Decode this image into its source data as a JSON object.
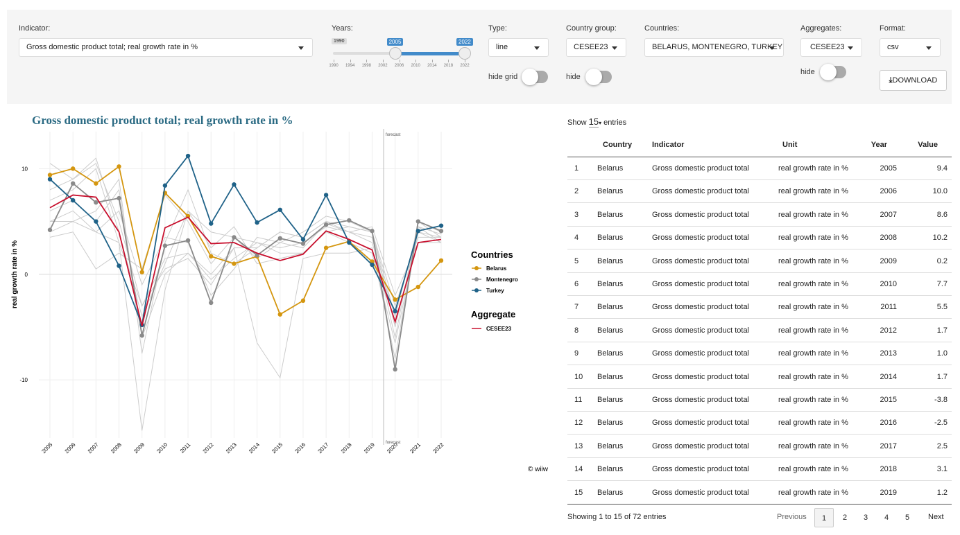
{
  "controls": {
    "indicator": {
      "label": "Indicator:",
      "value": "Gross domestic product total; real growth rate in %"
    },
    "years": {
      "label": "Years:",
      "min": 1990,
      "max": 2022,
      "from": 2005,
      "to": 2022,
      "ticks": [
        1990,
        1994,
        1998,
        2002,
        2006,
        2010,
        2014,
        2018,
        2022
      ]
    },
    "type": {
      "label": "Type:",
      "value": "line",
      "toggle_label": "hide grid"
    },
    "country_group": {
      "label": "Country group:",
      "value": "CESEE23",
      "toggle_label": "hide"
    },
    "countries": {
      "label": "Countries:",
      "value": "BELARUS, MONTENEGRO, TURKEY"
    },
    "aggregates": {
      "label": "Aggregates:",
      "value": "CESEE23",
      "toggle_label": "hide"
    },
    "format": {
      "label": "Format:",
      "value": "csv"
    },
    "download": "DOWNLOAD"
  },
  "chart_data": {
    "type": "line",
    "title": "Gross domestic product total; real growth rate in %",
    "y_label": "real growth rate in %",
    "x": [
      2005,
      2006,
      2007,
      2008,
      2009,
      2010,
      2011,
      2012,
      2013,
      2014,
      2015,
      2016,
      2017,
      2018,
      2019,
      2020,
      2021,
      2022
    ],
    "ylim": [
      -15.5,
      13.5
    ],
    "yticks": [
      -10,
      0,
      10
    ],
    "grid": true,
    "forecast_start": 2020,
    "forecast_label": "forecast",
    "annotation": "© wiiw",
    "legend_title": "Countries",
    "aggregate_title": "Aggregate",
    "series": [
      {
        "name": "Belarus",
        "color": "#d4960f",
        "values": [
          9.4,
          10.0,
          8.6,
          10.2,
          0.2,
          7.7,
          5.5,
          1.7,
          1.0,
          1.7,
          -3.8,
          -2.5,
          2.5,
          3.1,
          1.2,
          -2.4,
          -1.2,
          1.3
        ]
      },
      {
        "name": "Montenegro",
        "color": "#8a8a8a",
        "values": [
          4.2,
          8.6,
          6.8,
          7.2,
          -5.8,
          2.7,
          3.2,
          -2.7,
          3.5,
          1.8,
          3.4,
          2.9,
          4.7,
          5.1,
          4.1,
          -9.0,
          5.0,
          4.1
        ]
      },
      {
        "name": "Turkey",
        "color": "#1f6288",
        "values": [
          9.0,
          7.0,
          5.0,
          0.8,
          -4.8,
          8.4,
          11.2,
          4.8,
          8.5,
          4.9,
          6.1,
          3.3,
          7.5,
          3.0,
          0.9,
          -3.5,
          4.1,
          4.6
        ]
      },
      {
        "name": "CESEE23",
        "color": "#c8102e",
        "aggregate": true,
        "values": [
          6.3,
          7.5,
          7.3,
          4.0,
          -4.9,
          4.4,
          5.4,
          2.9,
          3.0,
          2.0,
          1.3,
          1.9,
          4.1,
          3.3,
          2.3,
          -4.5,
          3.0,
          3.3
        ]
      }
    ],
    "other_color": "#cccccc",
    "other_series": [
      {
        "values": [
          10.5,
          9,
          10.5,
          5,
          -3,
          1.5,
          2,
          -0.5,
          1.5,
          3,
          2.5,
          3,
          4.5,
          4,
          3.5,
          -6,
          5,
          3.5
        ]
      },
      {
        "values": [
          7,
          8,
          10,
          3,
          -14.8,
          -1.5,
          6,
          4,
          3.5,
          3,
          2,
          2,
          4,
          4.5,
          4,
          -5,
          4,
          3
        ]
      },
      {
        "values": [
          4,
          5,
          6,
          9,
          -7.5,
          3,
          8,
          2,
          1,
          2.5,
          4,
          3.5,
          5,
          4.5,
          4,
          -3,
          3.5,
          3.5
        ]
      },
      {
        "values": [
          5,
          6,
          4,
          3,
          -3,
          0.5,
          1.5,
          -1,
          2.5,
          -6.5,
          -9.8,
          1.5,
          2,
          2,
          2.5,
          -8,
          5,
          4
        ]
      },
      {
        "values": [
          3.5,
          4,
          0.5,
          2,
          0.5,
          7.5,
          5,
          1,
          3.5,
          1.5,
          3,
          2.5,
          4.8,
          4,
          3,
          -4,
          4.5,
          3
        ]
      },
      {
        "values": [
          6,
          7,
          5,
          8,
          -6,
          0,
          2,
          0,
          2.5,
          2.5,
          4,
          3.5,
          5,
          4,
          4.5,
          -2,
          3,
          3
        ]
      },
      {
        "values": [
          8,
          9,
          11,
          4,
          -4,
          1,
          6,
          2.5,
          4.5,
          1,
          1.5,
          2,
          4,
          3,
          2,
          -6.5,
          4,
          3.5
        ]
      },
      {
        "values": [
          5,
          5,
          4,
          6,
          -1,
          3.5,
          3,
          -2,
          0.5,
          3.5,
          3,
          4,
          5.5,
          5,
          4,
          -4,
          4.5,
          3.8
        ]
      }
    ]
  },
  "table": {
    "show_prefix": "Show",
    "page_length": "15",
    "show_suffix": "entries",
    "columns": [
      "",
      "Country",
      "Indicator",
      "Unit",
      "Year",
      "Value"
    ],
    "rows": [
      [
        "1",
        "Belarus",
        "Gross domestic product total",
        "real growth rate in %",
        "2005",
        "9.4"
      ],
      [
        "2",
        "Belarus",
        "Gross domestic product total",
        "real growth rate in %",
        "2006",
        "10.0"
      ],
      [
        "3",
        "Belarus",
        "Gross domestic product total",
        "real growth rate in %",
        "2007",
        "8.6"
      ],
      [
        "4",
        "Belarus",
        "Gross domestic product total",
        "real growth rate in %",
        "2008",
        "10.2"
      ],
      [
        "5",
        "Belarus",
        "Gross domestic product total",
        "real growth rate in %",
        "2009",
        "0.2"
      ],
      [
        "6",
        "Belarus",
        "Gross domestic product total",
        "real growth rate in %",
        "2010",
        "7.7"
      ],
      [
        "7",
        "Belarus",
        "Gross domestic product total",
        "real growth rate in %",
        "2011",
        "5.5"
      ],
      [
        "8",
        "Belarus",
        "Gross domestic product total",
        "real growth rate in %",
        "2012",
        "1.7"
      ],
      [
        "9",
        "Belarus",
        "Gross domestic product total",
        "real growth rate in %",
        "2013",
        "1.0"
      ],
      [
        "10",
        "Belarus",
        "Gross domestic product total",
        "real growth rate in %",
        "2014",
        "1.7"
      ],
      [
        "11",
        "Belarus",
        "Gross domestic product total",
        "real growth rate in %",
        "2015",
        "-3.8"
      ],
      [
        "12",
        "Belarus",
        "Gross domestic product total",
        "real growth rate in %",
        "2016",
        "-2.5"
      ],
      [
        "13",
        "Belarus",
        "Gross domestic product total",
        "real growth rate in %",
        "2017",
        "2.5"
      ],
      [
        "14",
        "Belarus",
        "Gross domestic product total",
        "real growth rate in %",
        "2018",
        "3.1"
      ],
      [
        "15",
        "Belarus",
        "Gross domestic product total",
        "real growth rate in %",
        "2019",
        "1.2"
      ]
    ],
    "info": "Showing 1 to 15 of 72 entries",
    "pagination": {
      "previous": "Previous",
      "pages": [
        "1",
        "2",
        "3",
        "4",
        "5"
      ],
      "next": "Next"
    }
  }
}
